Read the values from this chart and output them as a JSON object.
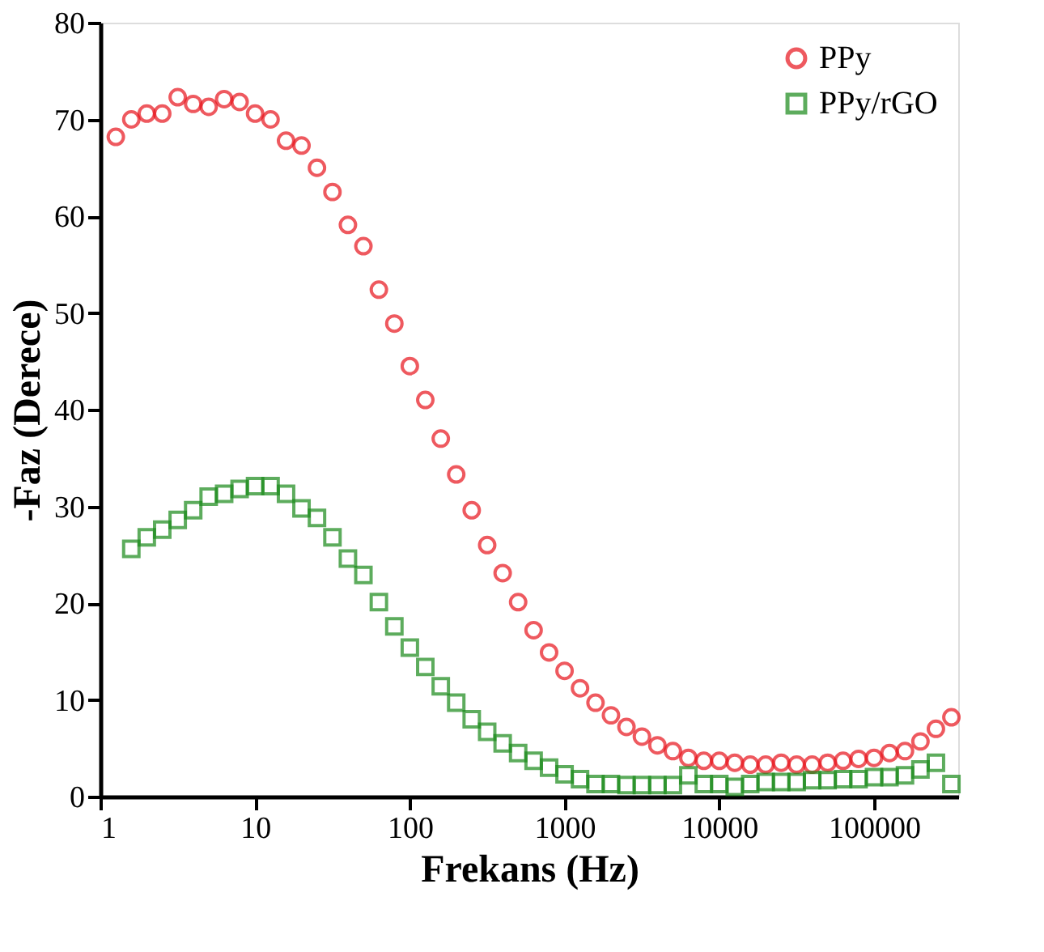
{
  "chart_data": {
    "type": "scatter",
    "xlabel": "Frekans (Hz)",
    "ylabel": "-Faz (Derece)",
    "log": "x",
    "xlim": [
      1,
      350000
    ],
    "xticks": [
      1,
      10,
      100,
      1000,
      10000,
      100000
    ],
    "ylim": [
      0,
      80
    ],
    "yticks": [
      0,
      10,
      20,
      30,
      40,
      50,
      60,
      70,
      80
    ],
    "grid": false,
    "legend": "top right",
    "x": [
      1.259,
      1.585,
      1.995,
      2.512,
      3.162,
      3.981,
      5.012,
      6.31,
      7.943,
      10,
      12.59,
      15.85,
      19.95,
      25.12,
      31.62,
      39.81,
      50.12,
      63.1,
      79.43,
      100,
      125.9,
      158.5,
      199.5,
      251.2,
      316.2,
      398.1,
      501.2,
      631,
      794.3,
      1000,
      1259,
      1585,
      1995,
      2512,
      3162,
      3981,
      5012,
      6310,
      7943,
      10000,
      12589,
      15849,
      19953,
      25119,
      31623,
      39811,
      50119,
      63096,
      79433,
      100000,
      125893,
      158489,
      199526,
      251189,
      316228
    ],
    "series": [
      {
        "name": "PPy",
        "color": "#e8141c",
        "marker": "circle",
        "values": [
          68.2,
          70.0,
          70.6,
          70.6,
          72.3,
          71.6,
          71.3,
          72.1,
          71.8,
          70.6,
          70.0,
          67.8,
          67.3,
          65.0,
          62.5,
          59.1,
          56.9,
          52.4,
          48.9,
          44.5,
          41.0,
          37.0,
          33.3,
          29.6,
          26.0,
          23.1,
          20.1,
          17.2,
          14.9,
          13.0,
          11.2,
          9.7,
          8.4,
          7.2,
          6.2,
          5.3,
          4.7,
          4.0,
          3.7,
          3.7,
          3.5,
          3.3,
          3.3,
          3.5,
          3.3,
          3.3,
          3.5,
          3.7,
          3.9,
          4.0,
          4.5,
          4.7,
          5.7,
          7.0,
          8.2
        ]
      },
      {
        "name": "PPy/rGO",
        "color": "#1a8a1a",
        "marker": "square",
        "values": [
          null,
          25.6,
          26.8,
          27.6,
          28.6,
          29.6,
          31.0,
          31.3,
          31.8,
          32.1,
          32.1,
          31.3,
          29.8,
          28.8,
          26.8,
          24.6,
          22.9,
          20.1,
          17.6,
          15.4,
          13.4,
          11.4,
          9.7,
          8.0,
          6.7,
          5.5,
          4.5,
          3.7,
          3.0,
          2.3,
          1.8,
          1.3,
          1.3,
          1.2,
          1.2,
          1.2,
          1.2,
          2.2,
          1.3,
          1.3,
          1.0,
          1.3,
          1.5,
          1.5,
          1.5,
          1.7,
          1.7,
          1.8,
          1.8,
          2.0,
          2.0,
          2.2,
          2.8,
          3.5,
          1.3
        ]
      }
    ]
  }
}
